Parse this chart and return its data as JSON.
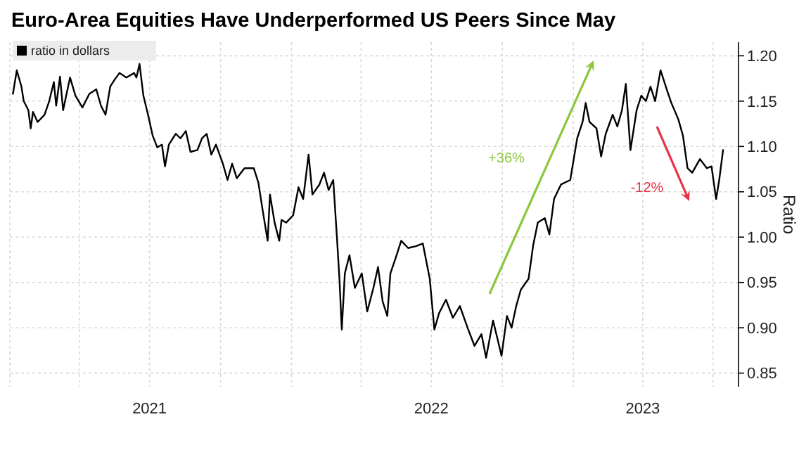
{
  "chart_data": {
    "type": "line",
    "title": "Euro-Area Equities Have Underperformed US Peers Since May",
    "ylabel": "Ratio",
    "xlim": [
      "2021-01-01",
      "2023-08-03"
    ],
    "xticks": [
      {
        "value": "2021-01-01",
        "label": null
      },
      {
        "value": "2021-04-01",
        "label": null
      },
      {
        "value": "2021-07-01",
        "label": "2021"
      },
      {
        "value": "2021-10-01",
        "label": null
      },
      {
        "value": "2022-01-01",
        "label": null
      },
      {
        "value": "2022-04-01",
        "label": null
      },
      {
        "value": "2022-07-01",
        "label": "2022"
      },
      {
        "value": "2022-10-01",
        "label": null
      },
      {
        "value": "2023-01-01",
        "label": null
      },
      {
        "value": "2023-04-01",
        "label": "2023"
      },
      {
        "value": "2023-07-01",
        "label": null
      }
    ],
    "ylim": [
      0.835,
      1.215
    ],
    "yticks": [
      0.85,
      {
        "value": 0.9,
        "label": "0.90"
      },
      0.95,
      {
        "value": 1.0,
        "label": "1.00"
      },
      1.05,
      {
        "value": 1.1,
        "label": "1.10"
      },
      1.15,
      {
        "value": 1.2,
        "label": "1.20"
      }
    ],
    "grid": true,
    "legend": "top left",
    "line_style": "solid",
    "marker": "none",
    "annotations": [
      "+36%",
      "-12%"
    ],
    "series": [
      {
        "name": "ratio in dollars",
        "color": "#000000",
        "x": [
          "2021-01-05",
          "2021-01-10",
          "2021-01-16",
          "2021-01-19",
          "2021-01-25",
          "2021-01-28",
          "2021-01-31",
          "2021-02-06",
          "2021-02-15",
          "2021-02-21",
          "2021-02-27",
          "2021-03-02",
          "2021-03-07",
          "2021-03-11",
          "2021-03-20",
          "2021-03-27",
          "2021-04-05",
          "2021-04-14",
          "2021-04-23",
          "2021-04-29",
          "2021-05-05",
          "2021-05-11",
          "2021-05-17",
          "2021-05-23",
          "2021-06-01",
          "2021-06-11",
          "2021-06-14",
          "2021-06-18",
          "2021-06-23",
          "2021-06-29",
          "2021-07-05",
          "2021-07-11",
          "2021-07-17",
          "2021-07-21",
          "2021-07-26",
          "2021-08-04",
          "2021-08-10",
          "2021-08-17",
          "2021-08-23",
          "2021-09-01",
          "2021-09-07",
          "2021-09-13",
          "2021-09-19",
          "2021-09-25",
          "2021-10-04",
          "2021-10-10",
          "2021-10-16",
          "2021-10-22",
          "2021-11-01",
          "2021-11-13",
          "2021-11-19",
          "2021-11-25",
          "2021-12-01",
          "2021-12-04",
          "2021-12-10",
          "2021-12-16",
          "2021-12-19",
          "2021-12-25",
          "2022-01-03",
          "2022-01-10",
          "2022-01-16",
          "2022-01-23",
          "2022-01-28",
          "2022-02-06",
          "2022-02-12",
          "2022-02-18",
          "2022-02-24",
          "2022-03-01",
          "2022-03-04",
          "2022-03-07",
          "2022-03-11",
          "2022-03-17",
          "2022-03-24",
          "2022-04-02",
          "2022-04-09",
          "2022-04-17",
          "2022-04-23",
          "2022-04-29",
          "2022-05-05",
          "2022-05-09",
          "2022-05-17",
          "2022-05-23",
          "2022-06-01",
          "2022-06-11",
          "2022-06-20",
          "2022-06-29",
          "2022-07-05",
          "2022-07-11",
          "2022-07-20",
          "2022-07-29",
          "2022-08-07",
          "2022-08-17",
          "2022-08-26",
          "2022-09-04",
          "2022-09-10",
          "2022-09-19",
          "2022-09-25",
          "2022-09-30",
          "2022-10-07",
          "2022-10-13",
          "2022-10-19",
          "2022-10-25",
          "2022-11-04",
          "2022-11-10",
          "2022-11-16",
          "2022-11-25",
          "2022-12-01",
          "2022-12-07",
          "2022-12-16",
          "2022-12-28",
          "2023-01-06",
          "2023-01-13",
          "2023-01-17",
          "2023-01-22",
          "2023-01-31",
          "2023-02-06",
          "2023-02-12",
          "2023-02-21",
          "2023-02-27",
          "2023-03-05",
          "2023-03-10",
          "2023-03-16",
          "2023-03-24",
          "2023-03-30",
          "2023-04-05",
          "2023-04-11",
          "2023-04-17",
          "2023-04-24",
          "2023-05-02",
          "2023-05-08",
          "2023-05-17",
          "2023-05-23",
          "2023-05-29",
          "2023-06-04",
          "2023-06-14",
          "2023-06-23",
          "2023-06-29",
          "2023-07-05",
          "2023-07-09",
          "2023-07-14"
        ],
        "values": [
          1.158,
          1.184,
          1.166,
          1.15,
          1.14,
          1.12,
          1.138,
          1.127,
          1.135,
          1.15,
          1.171,
          1.145,
          1.177,
          1.14,
          1.176,
          1.156,
          1.143,
          1.158,
          1.163,
          1.145,
          1.135,
          1.166,
          1.174,
          1.181,
          1.176,
          1.181,
          1.176,
          1.191,
          1.156,
          1.135,
          1.112,
          1.099,
          1.102,
          1.078,
          1.102,
          1.114,
          1.109,
          1.117,
          1.094,
          1.096,
          1.109,
          1.114,
          1.091,
          1.102,
          1.081,
          1.063,
          1.081,
          1.065,
          1.076,
          1.076,
          1.06,
          1.027,
          0.996,
          1.047,
          1.016,
          0.996,
          1.019,
          1.016,
          1.024,
          1.055,
          1.042,
          1.091,
          1.047,
          1.058,
          1.071,
          1.052,
          1.063,
          0.996,
          0.954,
          0.898,
          0.96,
          0.98,
          0.944,
          0.96,
          0.918,
          0.944,
          0.967,
          0.929,
          0.913,
          0.96,
          0.98,
          0.996,
          0.988,
          0.99,
          0.993,
          0.954,
          0.898,
          0.916,
          0.931,
          0.911,
          0.924,
          0.9,
          0.88,
          0.893,
          0.867,
          0.908,
          0.887,
          0.869,
          0.913,
          0.9,
          0.924,
          0.942,
          0.954,
          0.991,
          1.016,
          1.021,
          1.003,
          1.042,
          1.058,
          1.063,
          1.109,
          1.127,
          1.148,
          1.127,
          1.12,
          1.089,
          1.114,
          1.135,
          1.122,
          1.14,
          1.169,
          1.096,
          1.14,
          1.156,
          1.15,
          1.166,
          1.15,
          1.184,
          1.163,
          1.148,
          1.13,
          1.112,
          1.076,
          1.071,
          1.086,
          1.076,
          1.078,
          1.042,
          1.063,
          1.096
        ]
      }
    ]
  }
}
